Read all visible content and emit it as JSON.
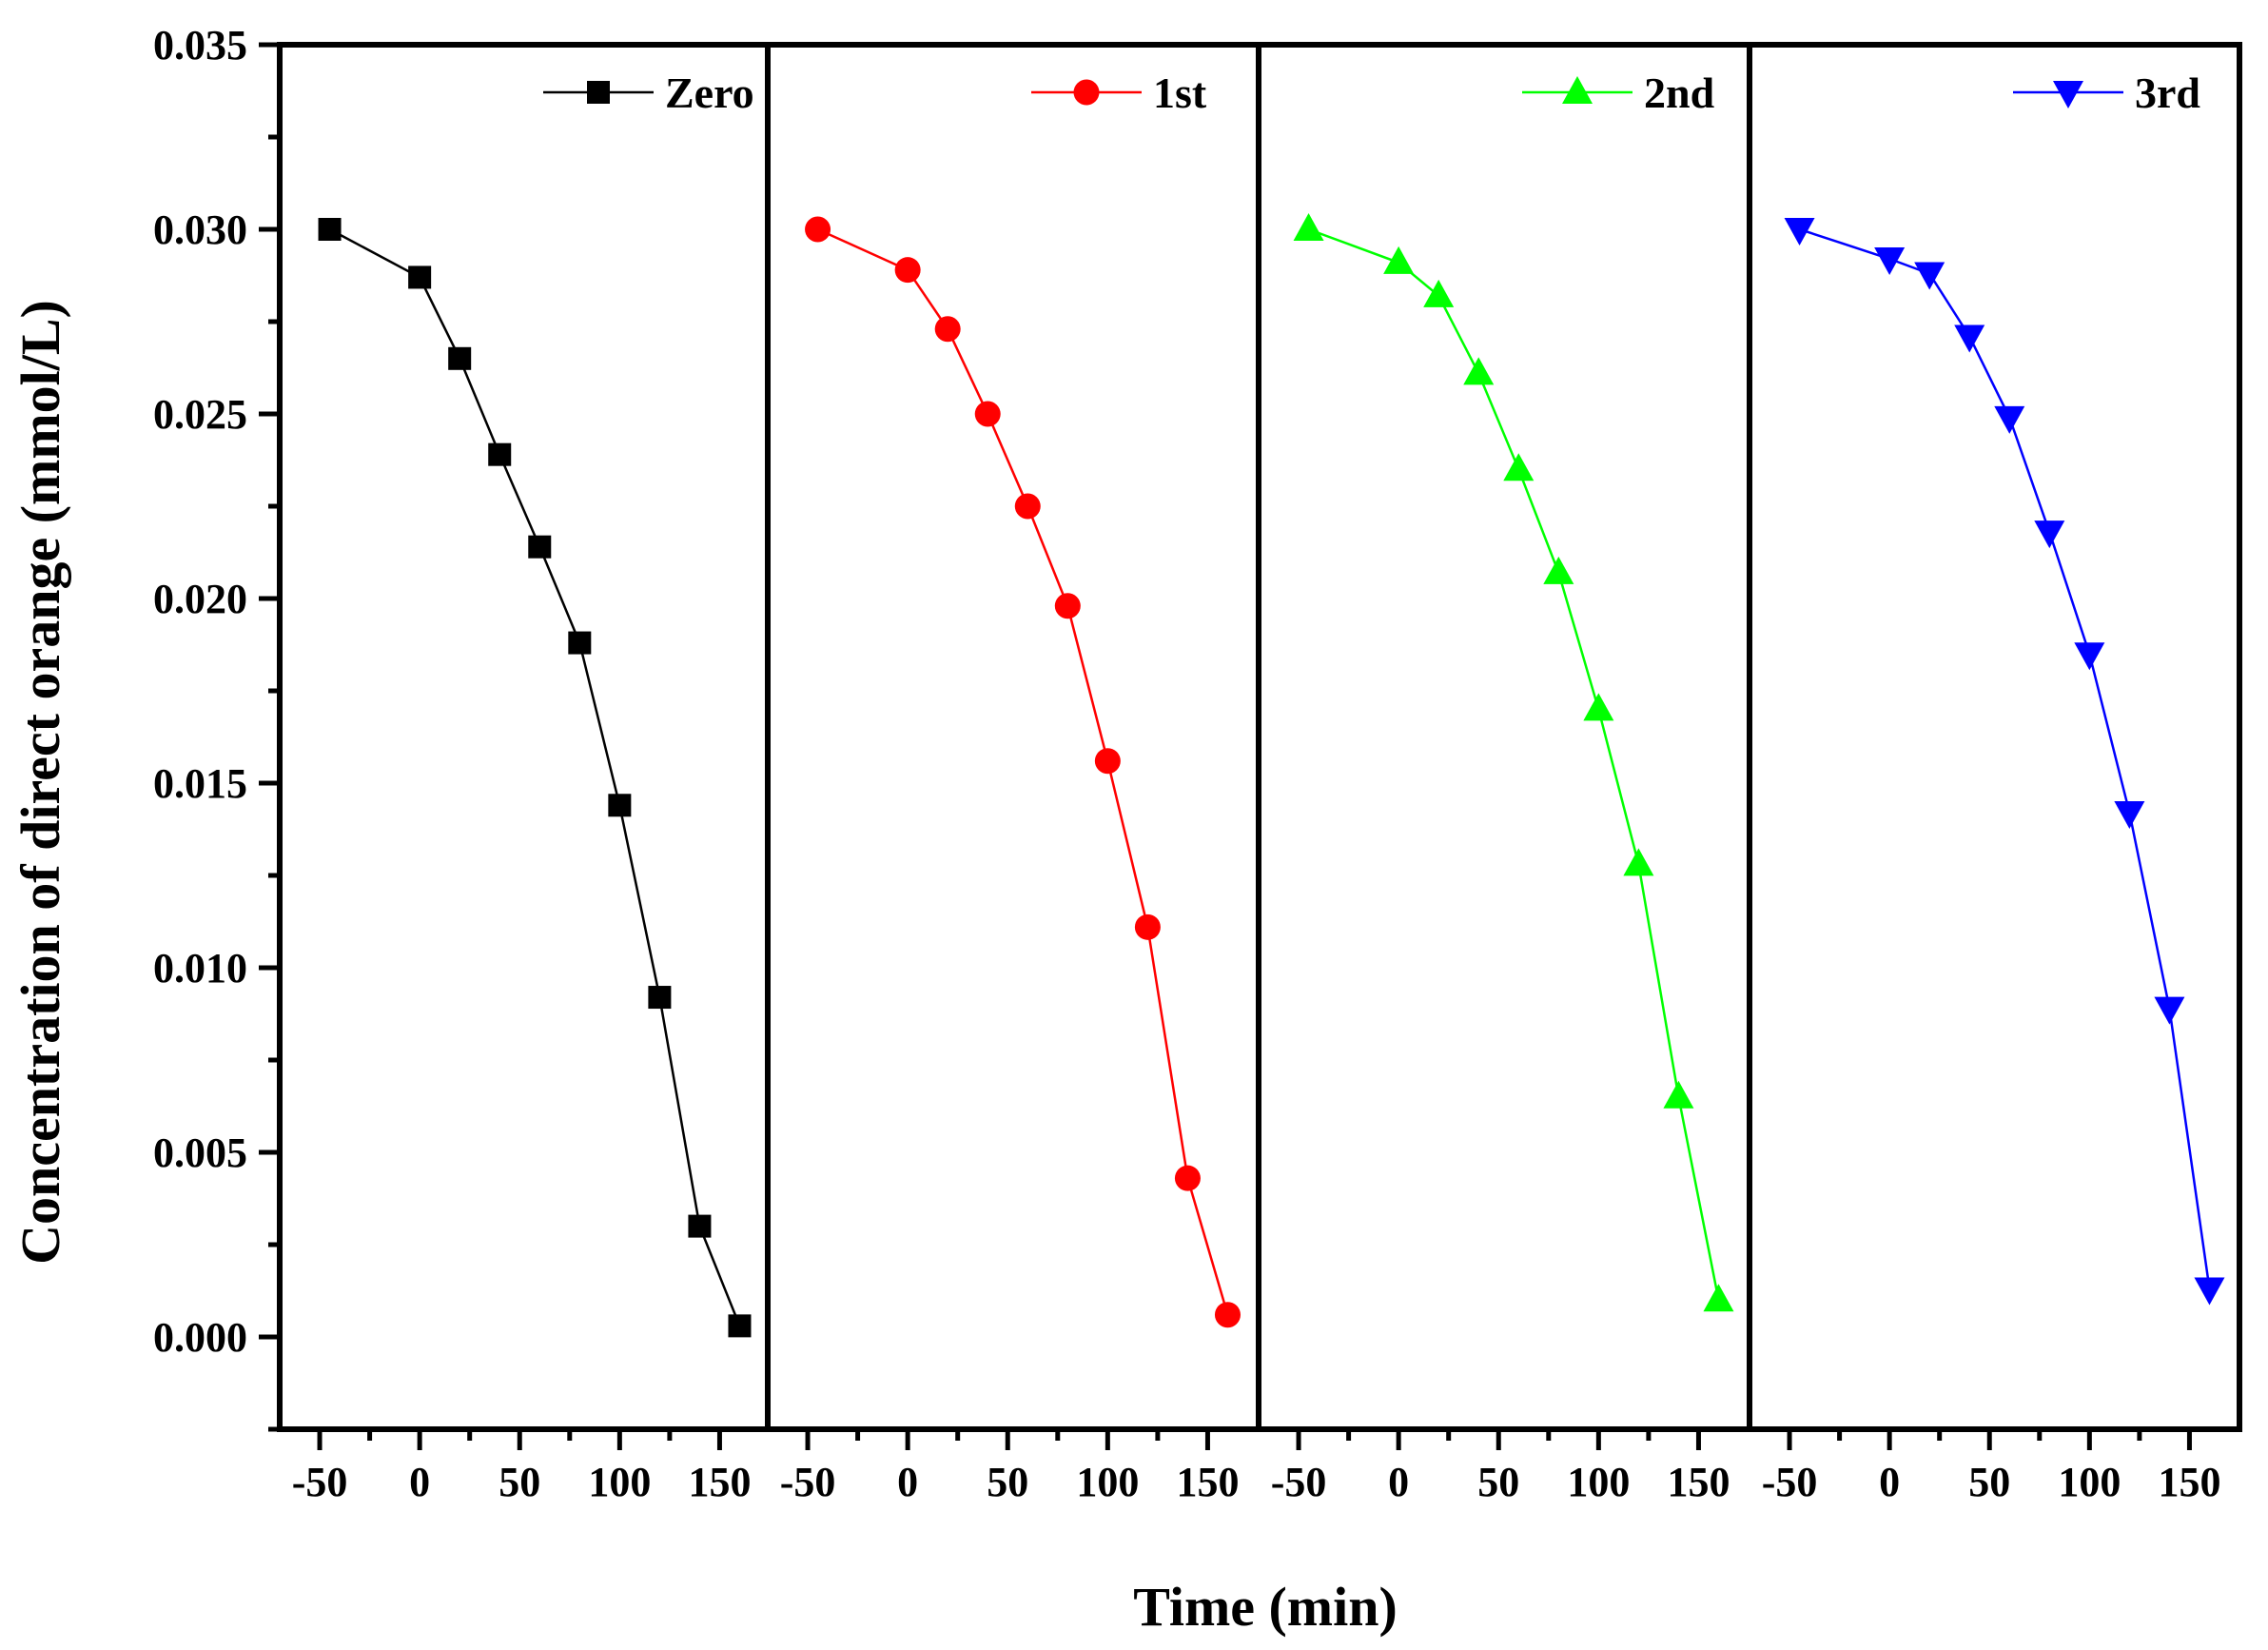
{
  "chart_data": {
    "type": "line",
    "layout": "four side-by-side panels sharing one y-axis",
    "xlabel": "Time (min)",
    "ylabel": "Concentration of direct orange (mmol/L)",
    "ylim": [
      -0.0025,
      0.035
    ],
    "xlim": [
      -70,
      175
    ],
    "y_ticks": [
      0.0,
      0.005,
      0.01,
      0.015,
      0.02,
      0.025,
      0.03,
      0.035
    ],
    "y_tick_labels": [
      "0.000",
      "0.005",
      "0.010",
      "0.015",
      "0.020",
      "0.025",
      "0.030",
      "0.035"
    ],
    "x_ticks": [
      -50,
      0,
      50,
      100,
      150
    ],
    "x_tick_labels": [
      "-50",
      "0",
      "50",
      "100",
      "150"
    ],
    "grid": false,
    "legend_position": "top-right of each panel",
    "series": [
      {
        "name": "Zero",
        "color": "#000000",
        "marker": "square",
        "x": [
          -45,
          0,
          20,
          40,
          60,
          80,
          100,
          120,
          140,
          160
        ],
        "values": [
          0.03,
          0.0287,
          0.0265,
          0.0239,
          0.0214,
          0.0188,
          0.0144,
          0.0092,
          0.003,
          0.0003
        ]
      },
      {
        "name": "1st",
        "color": "#ff0000",
        "marker": "circle",
        "x": [
          -45,
          0,
          20,
          40,
          60,
          80,
          100,
          120,
          140,
          160
        ],
        "values": [
          0.03,
          0.0289,
          0.0273,
          0.025,
          0.0225,
          0.0198,
          0.0156,
          0.0111,
          0.0043,
          0.0006
        ]
      },
      {
        "name": "2nd",
        "color": "#00ff00",
        "marker": "triangle-up",
        "x": [
          -45,
          0,
          20,
          40,
          60,
          80,
          100,
          120,
          140,
          160
        ],
        "values": [
          0.03,
          0.0291,
          0.0282,
          0.0261,
          0.0235,
          0.0207,
          0.017,
          0.0128,
          0.0065,
          0.001
        ]
      },
      {
        "name": "3rd",
        "color": "#0000ff",
        "marker": "triangle-down",
        "x": [
          -45,
          0,
          20,
          40,
          60,
          80,
          100,
          120,
          140,
          160
        ],
        "values": [
          0.03,
          0.0292,
          0.0288,
          0.0271,
          0.0249,
          0.0218,
          0.0185,
          0.0142,
          0.0089,
          0.0013
        ]
      }
    ]
  }
}
